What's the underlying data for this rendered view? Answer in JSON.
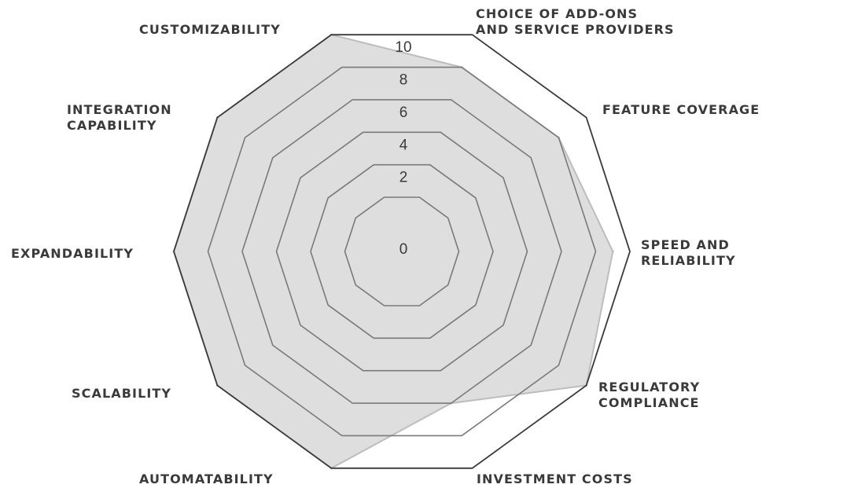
{
  "colors": {
    "fill": "#dedede",
    "fill_stroke": "#bdbdbd",
    "grid": "#7a7a7a",
    "outer": "#3a3a3a",
    "text": "#3a3a3a"
  },
  "chart_data": {
    "type": "radar",
    "axes": [
      [
        "CHOICE OF ADD-ONS",
        "AND SERVICE PROVIDERS"
      ],
      [
        "FEATURE COVERAGE"
      ],
      [
        "SPEED AND",
        "RELIABILITY"
      ],
      [
        "REGULATORY",
        "COMPLIANCE"
      ],
      [
        "INVESTMENT COSTS"
      ],
      [
        "AUTOMATABILITY"
      ],
      [
        "SCALABILITY"
      ],
      [
        "EXPANDABILITY"
      ],
      [
        "INTEGRATION",
        "CAPABILITY"
      ],
      [
        "CUSTOMIZABILITY"
      ]
    ],
    "range": [
      0,
      10
    ],
    "ticks": [
      "0",
      "2",
      "4",
      "6",
      "8",
      "10"
    ],
    "tick_values": [
      0,
      2,
      4,
      6,
      8,
      10
    ],
    "series": [
      {
        "values": [
          8,
          8,
          9,
          10,
          6,
          10,
          10,
          10,
          10,
          10
        ]
      }
    ]
  }
}
